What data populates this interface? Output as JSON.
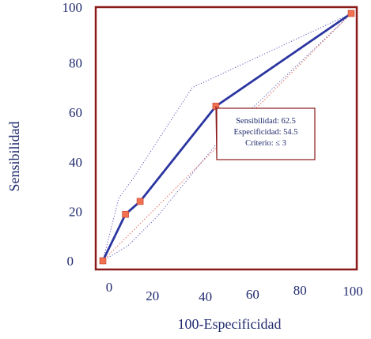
{
  "chart_data": {
    "type": "line",
    "title": "",
    "xlabel": "100-Especificidad",
    "ylabel": "Sensibilidad",
    "xlim": [
      0,
      100
    ],
    "ylim": [
      0,
      100
    ],
    "grid": false,
    "x_ticks": [
      0,
      20,
      40,
      60,
      80,
      100
    ],
    "y_ticks": [
      0,
      20,
      40,
      60,
      80,
      100
    ],
    "series": [
      {
        "role": "roc",
        "x": [
          0,
          9.1,
          15.0,
          45.5,
          100
        ],
        "y": [
          0,
          18.8,
          24.0,
          62.5,
          100
        ],
        "color": "#2b35a0",
        "marker_color": "#f07050"
      },
      {
        "role": "ci-upper",
        "x": [
          0,
          6.5,
          12,
          36,
          100
        ],
        "y": [
          0,
          25.5,
          33,
          70,
          100
        ],
        "color": "#5b5bc0"
      },
      {
        "role": "ci-lower",
        "x": [
          0,
          10,
          22,
          48,
          100
        ],
        "y": [
          0,
          6,
          18,
          50,
          100
        ],
        "color": "#5b5bc0"
      },
      {
        "role": "reference",
        "x": [
          0,
          100
        ],
        "y": [
          0,
          100
        ],
        "color": "#e06a55"
      }
    ],
    "annotation": {
      "lines": [
        "Sensibilidad: 62.5",
        "Especificidad: 54.5",
        "Criterio: ≤ 3"
      ],
      "point_x": 45.5,
      "point_y": 62.5
    },
    "colors": {
      "axis_frame": "#8b1a1a",
      "axis_text": "#1f2a6e",
      "callout_border": "#8b1a1a"
    }
  }
}
